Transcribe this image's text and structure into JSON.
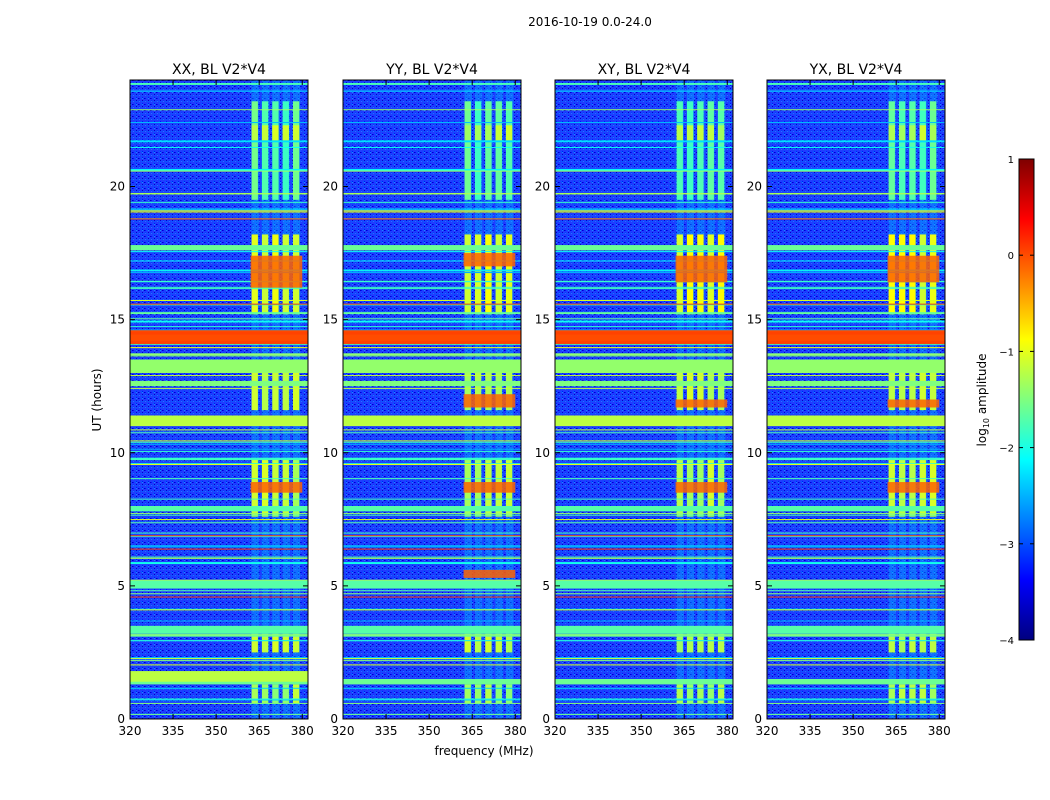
{
  "figure": {
    "suptitle": "2016-10-19 0.0-24.0",
    "xlabel": "frequency (MHz)",
    "ylabel": "UT (hours)",
    "colorbar_label": "log10 amplitude",
    "colorbar_label_main": "log",
    "colorbar_label_sub": "10",
    "colorbar_label_rest": " amplitude",
    "colorbar_ticks": [
      1,
      0,
      -1,
      -2,
      -3,
      -4
    ],
    "colorbar_tick_labels": [
      "1",
      "0",
      "−1",
      "−2",
      "−3",
      "−4"
    ],
    "colormap": [
      "#00007f",
      "#0000ff",
      "#007fff",
      "#00ffff",
      "#7fff7f",
      "#ffff00",
      "#ff7f00",
      "#ff0000",
      "#7f0000"
    ]
  },
  "chart_data": [
    {
      "type": "heatmap",
      "title": "XX, BL V2*V4",
      "xlabel": "frequency (MHz)",
      "ylabel": "UT (hours)",
      "xlim": [
        320,
        382
      ],
      "ylim": [
        0,
        24
      ],
      "xticks": [
        320,
        335,
        350,
        365,
        380
      ],
      "yticks": [
        0,
        5,
        10,
        15,
        20
      ],
      "zlim": [
        -4,
        1
      ],
      "background_log10_amplitude": -3,
      "rfi_freq_band_mhz": [
        362,
        380
      ],
      "strong_time_bands_ut": [
        [
          1.4,
          1.8
        ],
        [
          14.1,
          14.6
        ],
        [
          11.0,
          11.4
        ],
        [
          16.2,
          17.4
        ],
        [
          8.5,
          8.9
        ]
      ]
    },
    {
      "type": "heatmap",
      "title": "YY, BL V2*V4",
      "xlabel": "frequency (MHz)",
      "ylabel": "UT (hours)",
      "xlim": [
        320,
        382
      ],
      "ylim": [
        0,
        24
      ],
      "xticks": [
        320,
        335,
        350,
        365,
        380
      ],
      "yticks": [
        0,
        5,
        10,
        15,
        20
      ],
      "zlim": [
        -4,
        1
      ],
      "background_log10_amplitude": -3,
      "rfi_freq_band_mhz": [
        362,
        380
      ],
      "strong_time_bands_ut": [
        [
          14.1,
          14.6
        ],
        [
          11.0,
          11.4
        ],
        [
          17.0,
          17.5
        ],
        [
          11.7,
          12.2
        ],
        [
          8.5,
          8.9
        ],
        [
          5.3,
          5.6
        ]
      ]
    },
    {
      "type": "heatmap",
      "title": "XY, BL V2*V4",
      "xlabel": "frequency (MHz)",
      "ylabel": "UT (hours)",
      "xlim": [
        320,
        382
      ],
      "ylim": [
        0,
        24
      ],
      "xticks": [
        320,
        335,
        350,
        365,
        380
      ],
      "yticks": [
        0,
        5,
        10,
        15,
        20
      ],
      "zlim": [
        -4,
        1
      ],
      "background_log10_amplitude": -3,
      "rfi_freq_band_mhz": [
        362,
        380
      ],
      "strong_time_bands_ut": [
        [
          14.1,
          14.6
        ],
        [
          11.0,
          11.4
        ],
        [
          16.4,
          17.4
        ],
        [
          11.7,
          12.0
        ],
        [
          8.5,
          8.9
        ]
      ]
    },
    {
      "type": "heatmap",
      "title": "YX, BL V2*V4",
      "xlabel": "frequency (MHz)",
      "ylabel": "UT (hours)",
      "xlim": [
        320,
        382
      ],
      "ylim": [
        0,
        24
      ],
      "xticks": [
        320,
        335,
        350,
        365,
        380
      ],
      "yticks": [
        0,
        5,
        10,
        15,
        20
      ],
      "zlim": [
        -4,
        1
      ],
      "background_log10_amplitude": -3,
      "rfi_freq_band_mhz": [
        362,
        380
      ],
      "strong_time_bands_ut": [
        [
          14.1,
          14.6
        ],
        [
          11.0,
          11.4
        ],
        [
          16.4,
          17.4
        ],
        [
          11.7,
          12.0
        ],
        [
          8.5,
          8.9
        ]
      ]
    }
  ]
}
